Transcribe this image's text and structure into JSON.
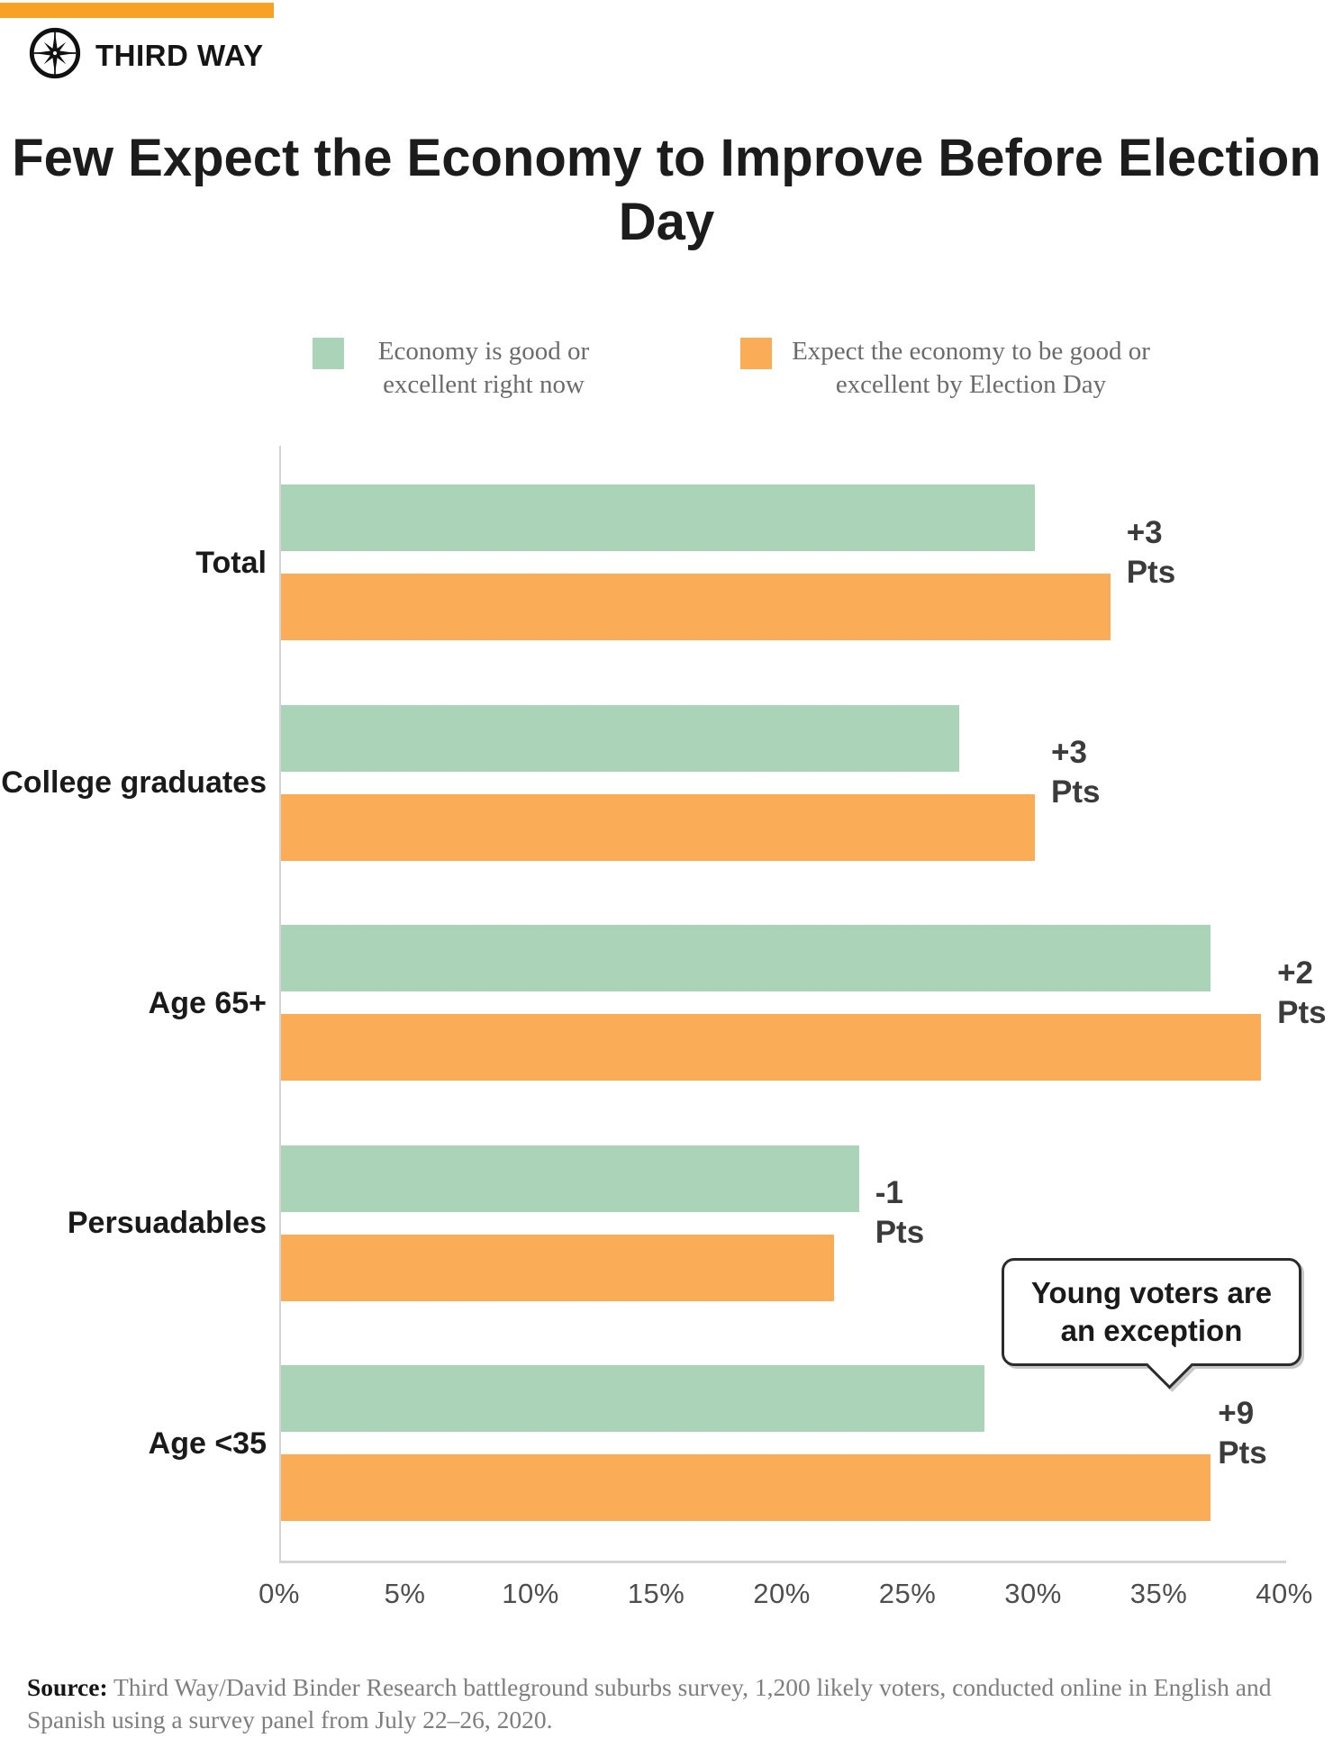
{
  "brand": {
    "name": "THIRD WAY",
    "banner_color": "#F9A125",
    "logo_icon": "compass-icon"
  },
  "title": "Few Expect the Economy to Improve Before Election Day",
  "legend": {
    "items": [
      {
        "label": "Economy is good or excellent right now",
        "color": "#ABD3B8"
      },
      {
        "label": "Expect the economy to be good or excellent by Election Day",
        "color": "#FBAC57"
      }
    ]
  },
  "chart_data": {
    "type": "bar",
    "orientation": "horizontal",
    "title": "Few Expect the Economy to Improve Before Election Day",
    "categories": [
      "Total",
      "College graduates",
      "Age 65+",
      "Persuadables",
      "Age <35"
    ],
    "series": [
      {
        "name": "Economy is good or excellent right now",
        "color": "#ABD3B8",
        "values": [
          30,
          27,
          37,
          23,
          28
        ]
      },
      {
        "name": "Expect the economy to be good or excellent by Election Day",
        "color": "#FBAC57",
        "values": [
          33,
          30,
          39,
          22,
          37
        ]
      }
    ],
    "change_labels": [
      "+3 Pts",
      "+3 Pts",
      "+2 Pts",
      "-1 Pts",
      "+9 Pts"
    ],
    "annotation": "Young voters are an exception",
    "x_ticks": [
      "0%",
      "5%",
      "10%",
      "15%",
      "20%",
      "25%",
      "30%",
      "35%",
      "40%"
    ],
    "xlim": [
      0,
      40
    ],
    "xlabel": "",
    "ylabel": "",
    "grid": false,
    "legend_position": "top"
  },
  "source": {
    "label": "Source:",
    "text": " Third Way/David Binder Research battleground suburbs survey, 1,200 likely voters, conducted online in English and Spanish using a survey panel from July 22–26, 2020."
  }
}
